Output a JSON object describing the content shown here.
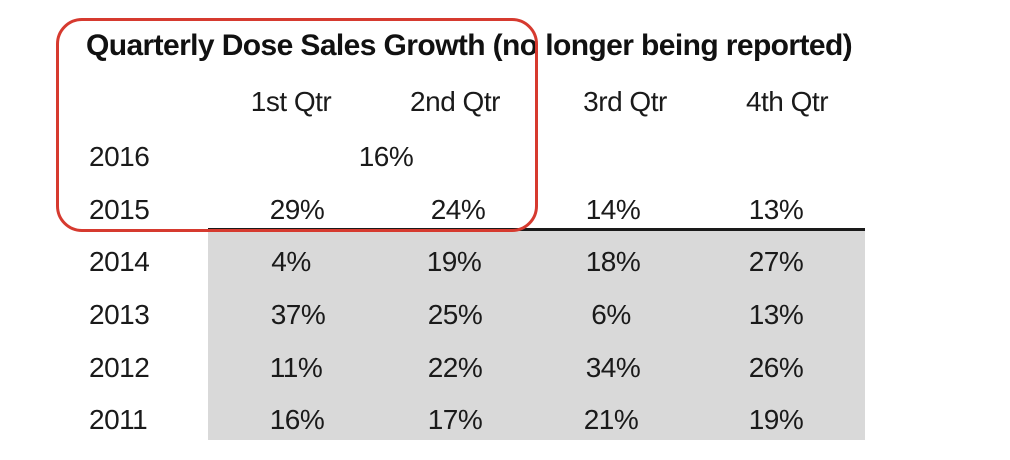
{
  "table": {
    "title": "Quarterly Dose Sales Growth (no longer being reported)",
    "columns": [
      "1st Qtr",
      "2nd Qtr",
      "3rd Qtr",
      "4th Qtr"
    ],
    "rows": [
      {
        "year": "2016",
        "values": [
          "16%"
        ]
      },
      {
        "year": "2015",
        "values": [
          "29%",
          "24%",
          "14%",
          "13%"
        ]
      },
      {
        "year": "2014",
        "values": [
          "4%",
          "19%",
          "18%",
          "27%"
        ]
      },
      {
        "year": "2013",
        "values": [
          "37%",
          "25%",
          "6%",
          "13%"
        ]
      },
      {
        "year": "2012",
        "values": [
          "11%",
          "22%",
          "34%",
          "26%"
        ]
      },
      {
        "year": "2011",
        "values": [
          "16%",
          "17%",
          "21%",
          "19%"
        ]
      }
    ]
  },
  "colors": {
    "highlight": "#d63a2f",
    "shaded_rows": "#d9d9d9",
    "rule": "#1a1a1a"
  }
}
